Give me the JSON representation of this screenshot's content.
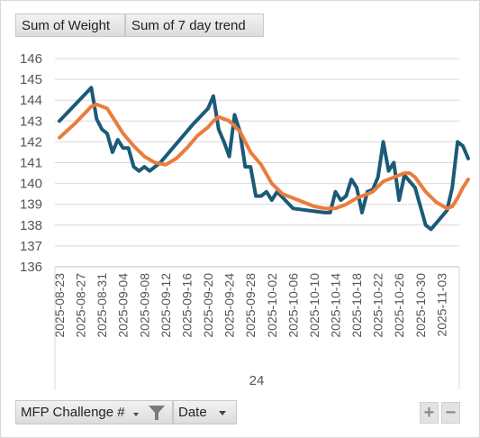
{
  "buttons": {
    "sum_weight": "Sum of Weight",
    "sum_trend": "Sum of 7 day trend",
    "mfp": "MFP Challenge #",
    "date": "Date",
    "zoom_in": "+",
    "zoom_out": "−"
  },
  "colors": {
    "weight": "#1b5a78",
    "trend": "#ea7c3c",
    "grid": "#d9d9d9"
  },
  "chart_data": {
    "type": "line",
    "ylim": [
      136,
      146
    ],
    "yticks": [
      "136",
      "137",
      "138",
      "139",
      "140",
      "141",
      "142",
      "143",
      "144",
      "145",
      "146"
    ],
    "x_tick_labels": [
      "2025-08-23",
      "2025-08-27",
      "2025-08-31",
      "2025-09-04",
      "2025-09-08",
      "2025-09-12",
      "2025-09-16",
      "2025-09-20",
      "2025-09-24",
      "2025-09-28",
      "2025-10-02",
      "2025-10-06",
      "2025-10-10",
      "2025-10-14",
      "2025-10-18",
      "2025-10-22",
      "2025-10-26",
      "2025-10-30",
      "2025-11-03"
    ],
    "group_label": "24",
    "series": [
      {
        "name": "Sum of Weight",
        "points": [
          [
            "2025-08-23",
            143.0
          ],
          [
            "2025-08-29",
            144.6
          ],
          [
            "2025-08-30",
            143.1
          ],
          [
            "2025-08-31",
            142.6
          ],
          [
            "2025-09-01",
            142.4
          ],
          [
            "2025-09-02",
            141.5
          ],
          [
            "2025-09-03",
            142.1
          ],
          [
            "2025-09-04",
            141.7
          ],
          [
            "2025-09-05",
            141.7
          ],
          [
            "2025-09-06",
            140.8
          ],
          [
            "2025-09-07",
            140.6
          ],
          [
            "2025-09-08",
            140.8
          ],
          [
            "2025-09-09",
            140.6
          ],
          [
            "2025-09-10",
            140.8
          ],
          [
            "2025-09-11",
            141.0
          ],
          [
            "2025-09-17",
            142.8
          ],
          [
            "2025-09-20",
            143.6
          ],
          [
            "2025-09-21",
            144.2
          ],
          [
            "2025-09-22",
            142.6
          ],
          [
            "2025-09-23",
            142.0
          ],
          [
            "2025-09-24",
            141.3
          ],
          [
            "2025-09-25",
            143.3
          ],
          [
            "2025-09-26",
            142.5
          ],
          [
            "2025-09-27",
            140.8
          ],
          [
            "2025-09-28",
            140.8
          ],
          [
            "2025-09-29",
            139.4
          ],
          [
            "2025-09-30",
            139.4
          ],
          [
            "2025-10-01",
            139.6
          ],
          [
            "2025-10-02",
            139.2
          ],
          [
            "2025-10-03",
            139.6
          ],
          [
            "2025-10-06",
            138.8
          ],
          [
            "2025-10-12",
            138.6
          ],
          [
            "2025-10-13",
            138.6
          ],
          [
            "2025-10-14",
            139.6
          ],
          [
            "2025-10-15",
            139.2
          ],
          [
            "2025-10-16",
            139.4
          ],
          [
            "2025-10-17",
            140.2
          ],
          [
            "2025-10-18",
            139.8
          ],
          [
            "2025-10-19",
            138.6
          ],
          [
            "2025-10-20",
            139.6
          ],
          [
            "2025-10-21",
            139.7
          ],
          [
            "2025-10-22",
            140.3
          ],
          [
            "2025-10-23",
            142.0
          ],
          [
            "2025-10-24",
            140.6
          ],
          [
            "2025-10-25",
            141.0
          ],
          [
            "2025-10-26",
            139.2
          ],
          [
            "2025-10-27",
            140.4
          ],
          [
            "2025-10-29",
            139.8
          ],
          [
            "2025-10-31",
            138.0
          ],
          [
            "2025-11-01",
            137.8
          ],
          [
            "2025-11-04",
            138.7
          ],
          [
            "2025-11-05",
            139.8
          ],
          [
            "2025-11-06",
            142.0
          ],
          [
            "2025-11-07",
            141.8
          ],
          [
            "2025-11-08",
            141.2
          ]
        ]
      },
      {
        "name": "Sum of 7 day trend",
        "points": [
          [
            "2025-08-23",
            142.2
          ],
          [
            "2025-08-26",
            142.9
          ],
          [
            "2025-08-29",
            143.7
          ],
          [
            "2025-08-30",
            143.8
          ],
          [
            "2025-09-01",
            143.6
          ],
          [
            "2025-09-02",
            143.2
          ],
          [
            "2025-09-04",
            142.4
          ],
          [
            "2025-09-06",
            141.8
          ],
          [
            "2025-09-08",
            141.3
          ],
          [
            "2025-09-10",
            141.0
          ],
          [
            "2025-09-12",
            140.9
          ],
          [
            "2025-09-14",
            141.2
          ],
          [
            "2025-09-16",
            141.7
          ],
          [
            "2025-09-18",
            142.3
          ],
          [
            "2025-09-20",
            142.7
          ],
          [
            "2025-09-21",
            143.0
          ],
          [
            "2025-09-22",
            143.2
          ],
          [
            "2025-09-24",
            143.0
          ],
          [
            "2025-09-26",
            142.5
          ],
          [
            "2025-09-28",
            141.5
          ],
          [
            "2025-09-30",
            140.9
          ],
          [
            "2025-10-02",
            140.0
          ],
          [
            "2025-10-04",
            139.5
          ],
          [
            "2025-10-06",
            139.3
          ],
          [
            "2025-10-08",
            139.1
          ],
          [
            "2025-10-10",
            138.9
          ],
          [
            "2025-10-12",
            138.8
          ],
          [
            "2025-10-14",
            138.8
          ],
          [
            "2025-10-16",
            139.0
          ],
          [
            "2025-10-18",
            139.3
          ],
          [
            "2025-10-20",
            139.5
          ],
          [
            "2025-10-21",
            139.6
          ],
          [
            "2025-10-23",
            140.1
          ],
          [
            "2025-10-25",
            140.3
          ],
          [
            "2025-10-27",
            140.5
          ],
          [
            "2025-10-28",
            140.5
          ],
          [
            "2025-10-29",
            140.3
          ],
          [
            "2025-10-31",
            139.6
          ],
          [
            "2025-11-02",
            139.1
          ],
          [
            "2025-11-04",
            138.8
          ],
          [
            "2025-11-05",
            138.9
          ],
          [
            "2025-11-06",
            139.3
          ],
          [
            "2025-11-07",
            139.8
          ],
          [
            "2025-11-08",
            140.2
          ]
        ]
      }
    ]
  }
}
